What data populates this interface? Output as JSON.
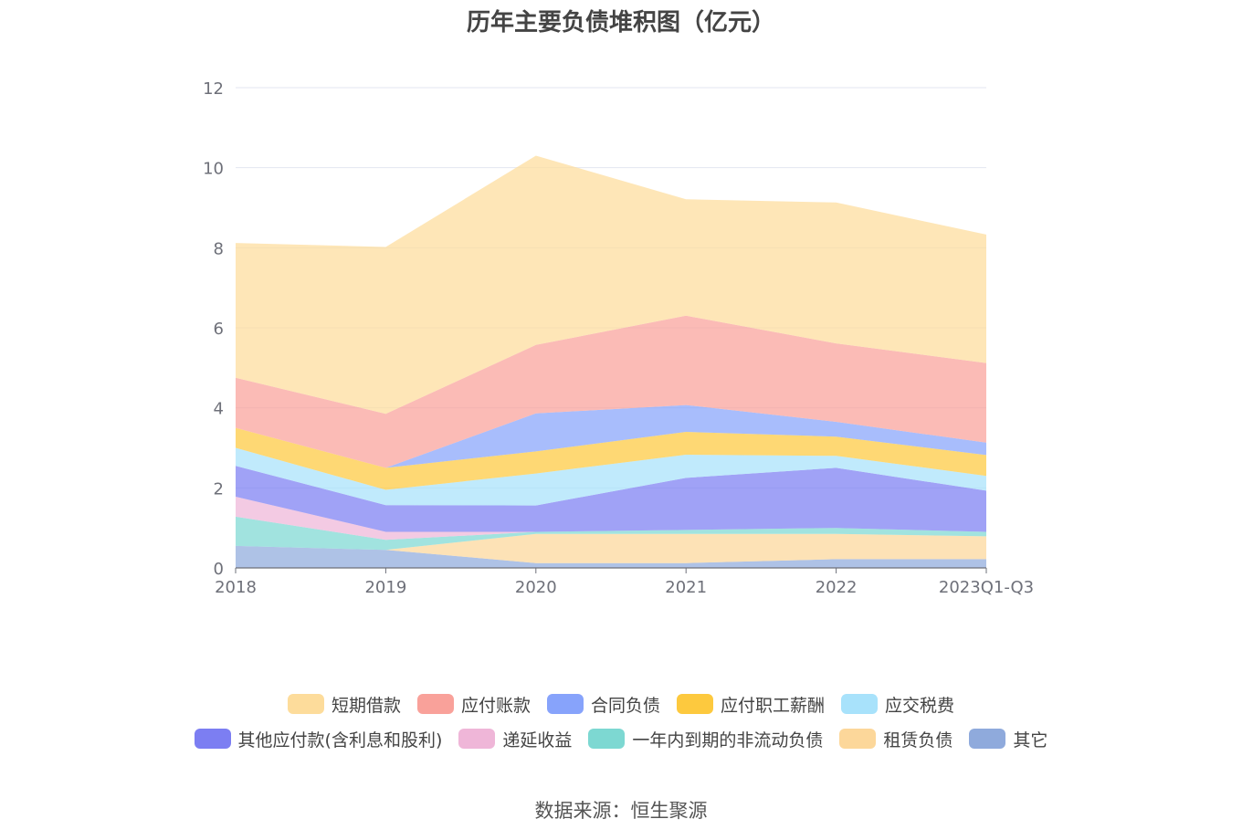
{
  "chart_data": {
    "type": "area",
    "stacked": true,
    "title": "历年主要负债堆积图（亿元）",
    "categories": [
      "2018",
      "2019",
      "2020",
      "2021",
      "2022",
      "2023Q1-Q3"
    ],
    "ylim": [
      0,
      12
    ],
    "y_ticks": [
      0,
      2,
      4,
      6,
      8,
      10,
      12
    ],
    "grid": true,
    "legend_position": "bottom",
    "series": [
      {
        "name": "其它",
        "color": "#8faadc",
        "values": [
          0.55,
          0.45,
          0.12,
          0.12,
          0.22,
          0.22
        ]
      },
      {
        "name": "租赁负债",
        "color": "#fcd79a",
        "values": [
          0.0,
          0.0,
          0.73,
          0.73,
          0.63,
          0.57
        ]
      },
      {
        "name": "一年内到期的非流动负债",
        "color": "#7dd8d2",
        "values": [
          0.73,
          0.25,
          0.05,
          0.1,
          0.15,
          0.11
        ]
      },
      {
        "name": "递延收益",
        "color": "#efb6d8",
        "values": [
          0.5,
          0.2,
          0.0,
          0.0,
          0.0,
          0.0
        ]
      },
      {
        "name": "其他应付款(含利息和股利)",
        "color": "#7c7ef2",
        "values": [
          0.77,
          0.67,
          0.66,
          1.3,
          1.5,
          1.03
        ]
      },
      {
        "name": "应交税费",
        "color": "#a8e2fb",
        "values": [
          0.45,
          0.38,
          0.8,
          0.58,
          0.3,
          0.37
        ]
      },
      {
        "name": "应付职工薪酬",
        "color": "#fdc93e",
        "values": [
          0.5,
          0.55,
          0.55,
          0.57,
          0.48,
          0.52
        ]
      },
      {
        "name": "合同负债",
        "color": "#87a3fb",
        "values": [
          0.0,
          0.0,
          0.95,
          0.67,
          0.37,
          0.31
        ]
      },
      {
        "name": "应付账款",
        "color": "#f9a19a",
        "values": [
          1.25,
          1.35,
          1.71,
          2.23,
          1.96,
          1.99
        ]
      },
      {
        "name": "短期借款",
        "color": "#fddc9b",
        "values": [
          3.37,
          4.17,
          4.73,
          2.91,
          3.52,
          3.21
        ]
      }
    ]
  },
  "legend_rows": [
    [
      {
        "name": "短期借款",
        "color": "#fddc9b"
      },
      {
        "name": "应付账款",
        "color": "#f9a19a"
      },
      {
        "name": "合同负债",
        "color": "#87a3fb"
      },
      {
        "name": "应付职工薪酬",
        "color": "#fdc93e"
      },
      {
        "name": "应交税费",
        "color": "#a8e2fb"
      }
    ],
    [
      {
        "name": "其他应付款(含利息和股利)",
        "color": "#7c7ef2"
      },
      {
        "name": "递延收益",
        "color": "#efb6d8"
      },
      {
        "name": "一年内到期的非流动负债",
        "color": "#7dd8d2"
      },
      {
        "name": "租赁负债",
        "color": "#fcd79a"
      },
      {
        "name": "其它",
        "color": "#8faadc"
      }
    ]
  ],
  "source_note": "数据来源：恒生聚源",
  "colors": {
    "grid": "#e3e6f0",
    "axis": "#6e7079",
    "tick_text": "#6e7079"
  }
}
